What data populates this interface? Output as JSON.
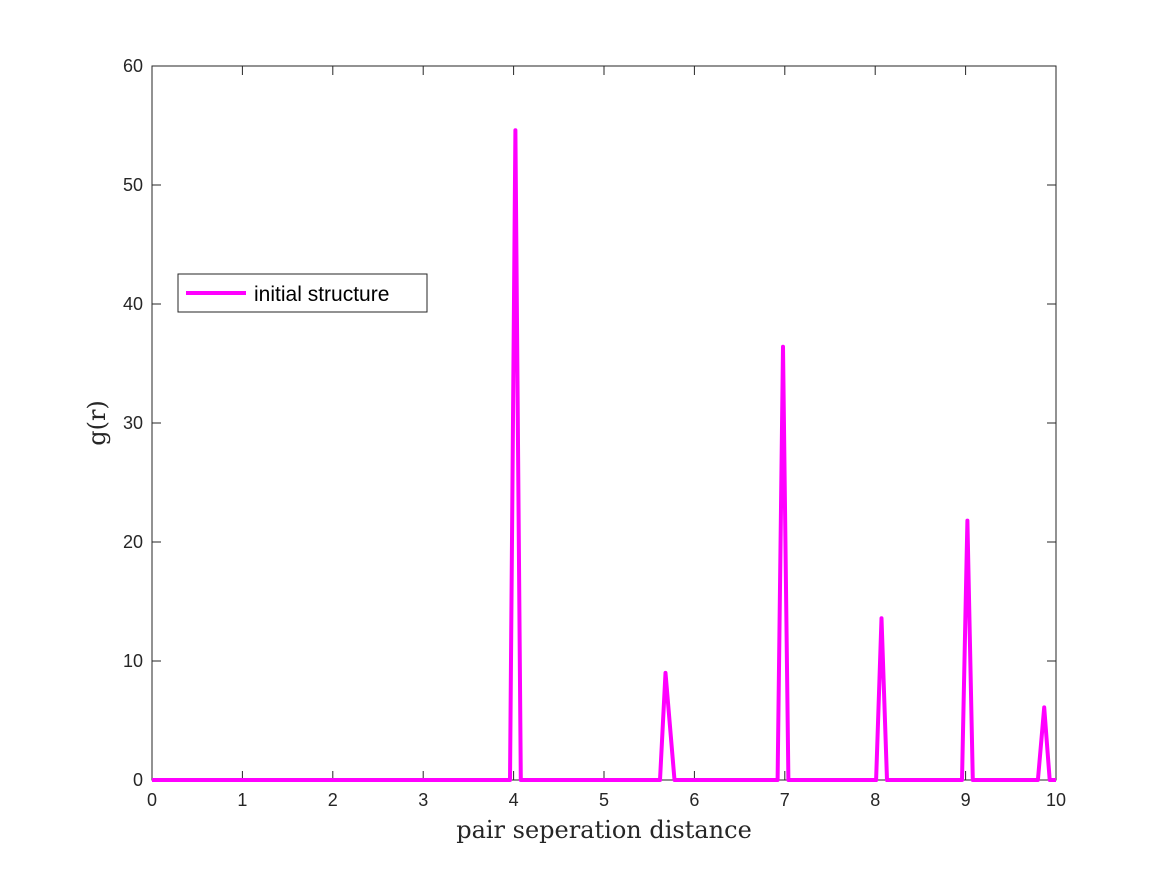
{
  "chart_data": {
    "type": "line",
    "xlabel": "pair seperation distance",
    "ylabel": "g(r)",
    "xlim": [
      0,
      10
    ],
    "ylim": [
      0,
      60
    ],
    "xticks": [
      "0",
      "1",
      "2",
      "3",
      "4",
      "5",
      "6",
      "7",
      "8",
      "9",
      "10"
    ],
    "yticks": [
      "0",
      "10",
      "20",
      "30",
      "40",
      "50",
      "60"
    ],
    "grid": false,
    "legend_position": "upper-left",
    "series": [
      {
        "name": "initial structure",
        "color": "#ff00ff",
        "points": [
          [
            0,
            0
          ],
          [
            3.96,
            0
          ],
          [
            4.02,
            54.6
          ],
          [
            4.08,
            0
          ],
          [
            5.62,
            0
          ],
          [
            5.68,
            9.0
          ],
          [
            5.78,
            0
          ],
          [
            6.92,
            0
          ],
          [
            6.98,
            36.4
          ],
          [
            7.04,
            0
          ],
          [
            8.01,
            0
          ],
          [
            8.07,
            13.6
          ],
          [
            8.13,
            0
          ],
          [
            8.96,
            0
          ],
          [
            9.02,
            21.8
          ],
          [
            9.08,
            0
          ],
          [
            9.8,
            0
          ],
          [
            9.87,
            6.1
          ],
          [
            9.93,
            0
          ],
          [
            10,
            0
          ]
        ]
      }
    ]
  }
}
